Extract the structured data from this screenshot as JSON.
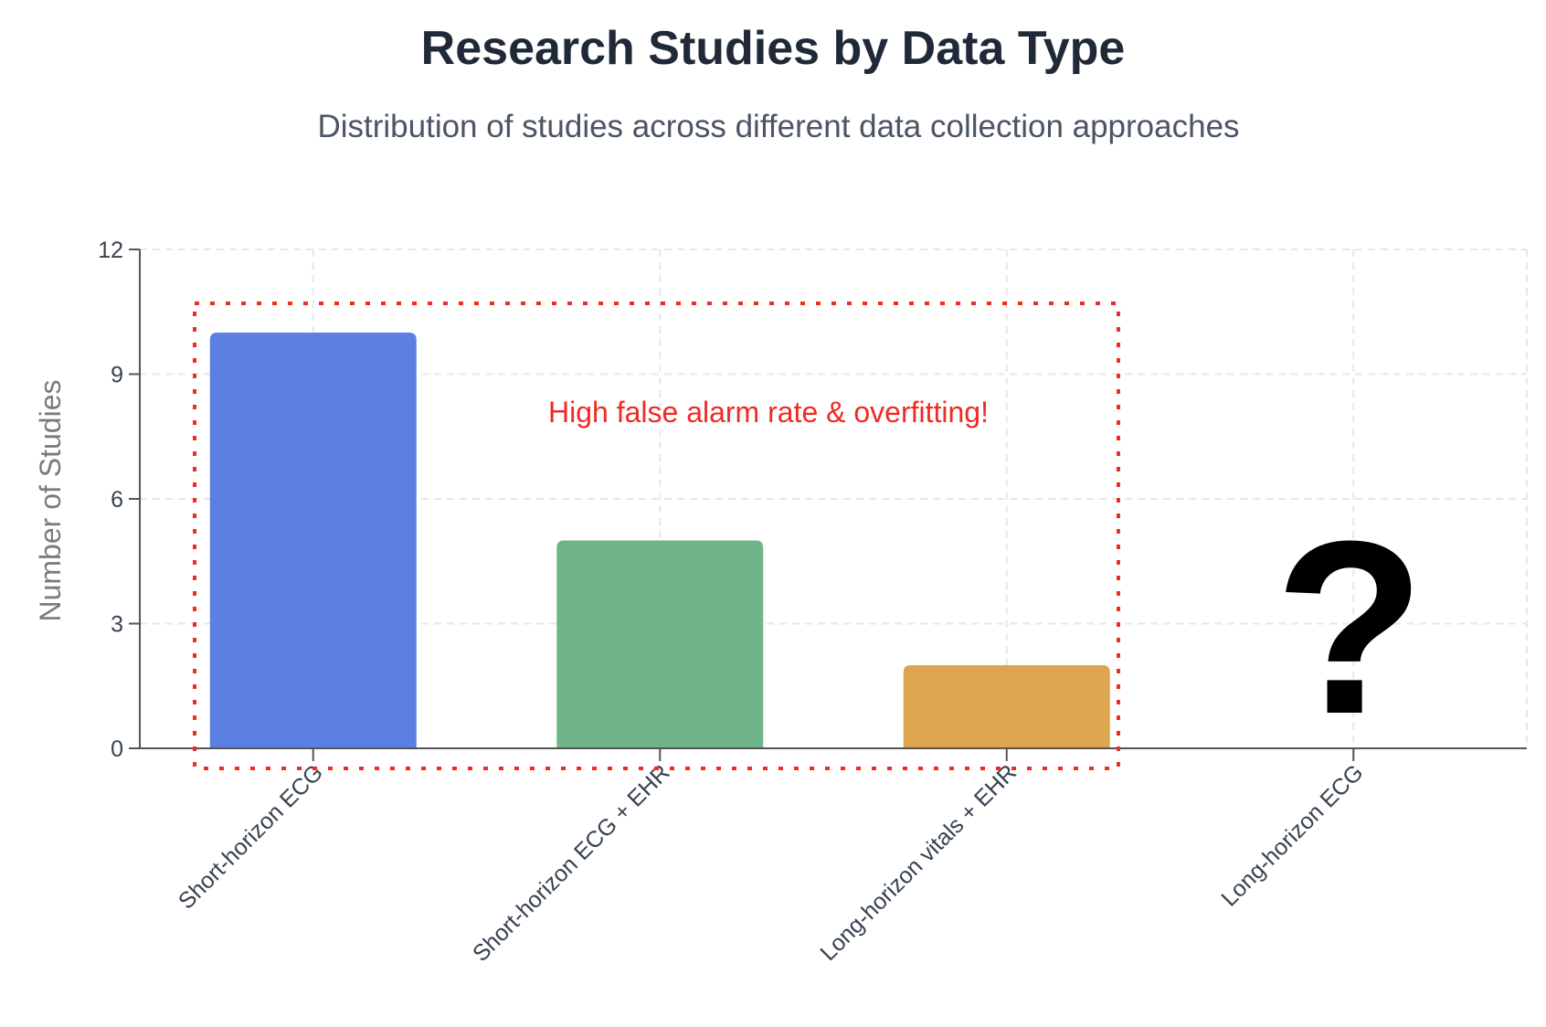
{
  "chart_data": {
    "type": "bar",
    "title": "Research Studies by Data Type",
    "subtitle": "Distribution of studies across different data collection approaches",
    "xlabel": "",
    "ylabel": "Number of Studies",
    "categories": [
      "Short-horizon ECG",
      "Short-horizon ECG + EHR",
      "Long-horizon vitals + EHR",
      "Long-horizon ECG"
    ],
    "values": [
      10,
      5,
      2,
      null
    ],
    "colors": [
      "#5b7fe3",
      "#70b58a",
      "#dea54f",
      null
    ],
    "ylim": [
      0,
      12
    ],
    "yticks": [
      0,
      3,
      6,
      9,
      12
    ],
    "grid": true,
    "annotations": {
      "box_label": "High false alarm rate & overfitting!",
      "box_color": "#ee2b24",
      "box_covers_categories": [
        "Short-horizon ECG",
        "Short-horizon ECG + EHR",
        "Long-horizon vitals + EHR"
      ],
      "unknown_marker": "?",
      "unknown_marker_category": "Long-horizon ECG"
    }
  }
}
